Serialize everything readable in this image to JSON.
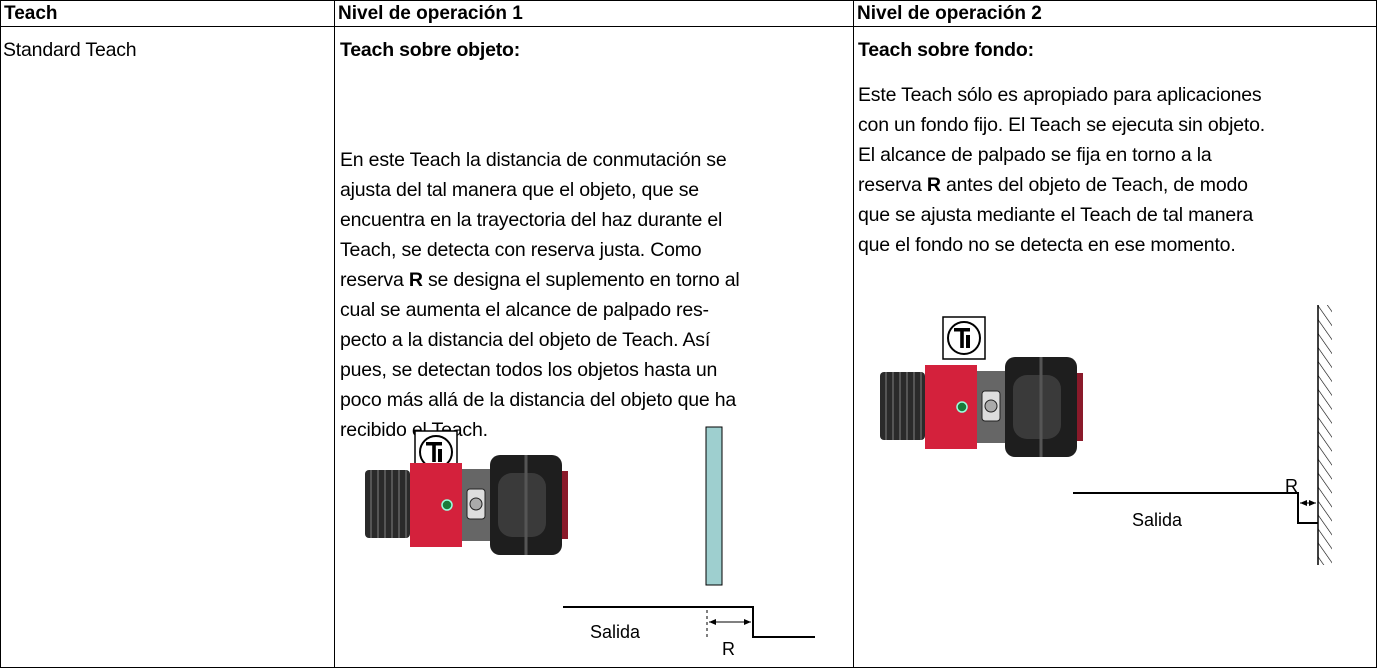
{
  "table": {
    "header": [
      "Teach",
      "Nivel de operación 1",
      "Nivel de operación 2"
    ],
    "row": {
      "mode": "Standard Teach",
      "level1": {
        "heading": "Teach sobre objeto:",
        "lines": [
          "En este Teach la distancia de conmutación se",
          "ajusta del tal manera que el objeto, que se",
          "encuentra en la trayectoria del haz durante el",
          "Teach, se detecta con reserva justa. Como",
          [
            "reserva ",
            "R",
            " se designa el suplemento en torno al"
          ],
          "cual se aumenta el alcance de palpado res-",
          "pecto a la distancia del objeto de Teach. Así",
          "pues, se detectan todos los objetos hasta un",
          "poco más allá de la distancia del objeto que ha",
          "recibido el Teach."
        ],
        "output_label": "Salida",
        "reserve_label": "R"
      },
      "level2": {
        "heading": "Teach sobre fondo:",
        "lines": [
          "Este Teach sólo es apropiado para aplicaciones",
          "con un fondo fijo. El Teach se ejecuta sin objeto.",
          "El alcance de palpado se fija en torno a la",
          [
            "reserva ",
            "R",
            " antes del objeto de Teach, de modo"
          ],
          "que se ajusta mediante el Teach de tal manera",
          "que el fondo no se detecta en ese momento."
        ],
        "output_label": "Salida",
        "reserve_label": "R"
      }
    }
  }
}
